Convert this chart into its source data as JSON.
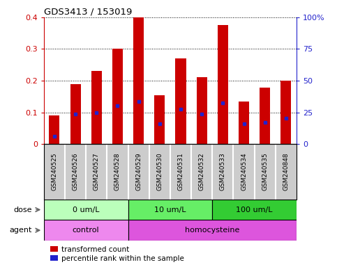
{
  "title": "GDS3413 / 153019",
  "samples": [
    "GSM240525",
    "GSM240526",
    "GSM240527",
    "GSM240528",
    "GSM240529",
    "GSM240530",
    "GSM240531",
    "GSM240532",
    "GSM240533",
    "GSM240534",
    "GSM240535",
    "GSM240848"
  ],
  "red_values": [
    0.09,
    0.19,
    0.23,
    0.3,
    0.4,
    0.155,
    0.27,
    0.21,
    0.375,
    0.135,
    0.178,
    0.2
  ],
  "blue_values": [
    0.025,
    0.095,
    0.1,
    0.12,
    0.135,
    0.065,
    0.11,
    0.095,
    0.13,
    0.065,
    0.068,
    0.082
  ],
  "bar_color": "#cc0000",
  "blue_color": "#2222cc",
  "ylim_left": [
    0,
    0.4
  ],
  "ylim_right": [
    0,
    100
  ],
  "yticks_left": [
    0,
    0.1,
    0.2,
    0.3,
    0.4
  ],
  "yticks_left_labels": [
    "0",
    "0.1",
    "0.2",
    "0.3",
    "0.4"
  ],
  "yticks_right": [
    0,
    25,
    50,
    75,
    100
  ],
  "yticks_right_labels": [
    "0",
    "25",
    "50",
    "75",
    "100%"
  ],
  "dose_groups": [
    {
      "label": "0 um/L",
      "start": 0,
      "end": 4,
      "color": "#bbffbb"
    },
    {
      "label": "10 um/L",
      "start": 4,
      "end": 8,
      "color": "#66ee66"
    },
    {
      "label": "100 um/L",
      "start": 8,
      "end": 12,
      "color": "#33cc33"
    }
  ],
  "agent_groups": [
    {
      "label": "control",
      "start": 0,
      "end": 4,
      "color": "#ee88ee"
    },
    {
      "label": "homocysteine",
      "start": 4,
      "end": 12,
      "color": "#dd55dd"
    }
  ],
  "dose_label": "dose",
  "agent_label": "agent",
  "legend_red": "transformed count",
  "legend_blue": "percentile rank within the sample",
  "bar_width": 0.5,
  "label_bg": "#cccccc",
  "n_samples": 12
}
